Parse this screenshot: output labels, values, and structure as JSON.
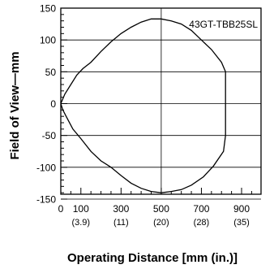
{
  "chart_data": {
    "type": "line",
    "annotation": "43GT-TBB25SL",
    "xlabel": "Operating Distance [mm (in.)]",
    "ylabel": "Field of View—mm",
    "xlim": [
      0,
      1000
    ],
    "ylim": [
      -160,
      150
    ],
    "grid": "horizontal",
    "x_ticks": [
      {
        "value": 0,
        "label": "0",
        "sub": ""
      },
      {
        "value": 100,
        "label": "100",
        "sub": "(3.9)"
      },
      {
        "value": 300,
        "label": "300",
        "sub": "(11)"
      },
      {
        "value": 500,
        "label": "500",
        "sub": "(20)"
      },
      {
        "value": 700,
        "label": "700",
        "sub": "(28)"
      },
      {
        "value": 900,
        "label": "900",
        "sub": "(35)"
      }
    ],
    "x_minor_ticks": [
      50,
      150,
      200,
      250,
      350,
      400,
      450,
      550,
      600,
      650,
      750,
      800,
      850,
      950
    ],
    "y_ticks": [
      150,
      100,
      50,
      0,
      -50,
      -100,
      -150
    ],
    "y_minor_ticks": [
      140,
      130,
      120,
      110,
      90,
      80,
      70,
      60,
      40,
      30,
      20,
      10,
      -10,
      -20,
      -30,
      -40,
      -60,
      -70,
      -80,
      -90,
      -110,
      -120,
      -130,
      -140
    ],
    "series": [
      {
        "values_xy": [
          [
            0,
            0
          ],
          [
            20,
            15
          ],
          [
            50,
            30
          ],
          [
            80,
            45
          ],
          [
            110,
            55
          ],
          [
            150,
            65
          ],
          [
            200,
            82
          ],
          [
            250,
            97
          ],
          [
            300,
            110
          ],
          [
            350,
            120
          ],
          [
            400,
            128
          ],
          [
            450,
            133
          ],
          [
            500,
            133
          ],
          [
            550,
            130
          ],
          [
            600,
            125
          ],
          [
            650,
            115
          ],
          [
            700,
            100
          ],
          [
            750,
            85
          ],
          [
            800,
            65
          ],
          [
            820,
            50
          ],
          [
            820,
            0
          ],
          [
            820,
            -50
          ],
          [
            810,
            -75
          ],
          [
            760,
            -98
          ],
          [
            710,
            -115
          ],
          [
            650,
            -128
          ],
          [
            600,
            -135
          ],
          [
            550,
            -138
          ],
          [
            500,
            -140
          ],
          [
            450,
            -138
          ],
          [
            400,
            -133
          ],
          [
            350,
            -125
          ],
          [
            300,
            -113
          ],
          [
            250,
            -100
          ],
          [
            200,
            -90
          ],
          [
            150,
            -75
          ],
          [
            100,
            -55
          ],
          [
            60,
            -40
          ],
          [
            30,
            -22
          ],
          [
            10,
            -10
          ],
          [
            0,
            0
          ]
        ]
      }
    ]
  }
}
